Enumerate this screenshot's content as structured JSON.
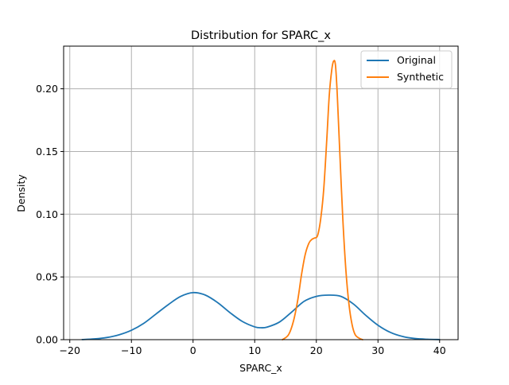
{
  "chart_data": {
    "type": "line",
    "title": "Distribution for SPARC_x",
    "xlabel": "SPARC_x",
    "ylabel": "Density",
    "xlim": [
      -21,
      43
    ],
    "ylim": [
      0,
      0.234
    ],
    "xticks": [
      -20,
      -10,
      0,
      10,
      20,
      30,
      40
    ],
    "xtick_labels": [
      "−20",
      "−10",
      "0",
      "10",
      "20",
      "30",
      "40"
    ],
    "yticks": [
      0,
      0.05,
      0.1,
      0.15,
      0.2
    ],
    "ytick_labels": [
      "0.00",
      "0.05",
      "0.10",
      "0.15",
      "0.20"
    ],
    "grid": true,
    "legend_position": "top-right",
    "series": [
      {
        "name": "Original",
        "color": "#1f77b4",
        "x": [
          -18,
          -16,
          -14,
          -12,
          -10,
          -8,
          -6,
          -4,
          -2,
          0,
          2,
          4,
          6,
          8,
          10,
          11,
          12,
          14,
          16,
          18,
          20,
          22,
          24,
          26,
          28,
          30,
          32,
          34,
          36,
          38,
          40
        ],
        "y": [
          0.0001,
          0.0006,
          0.0017,
          0.0039,
          0.0075,
          0.013,
          0.0205,
          0.028,
          0.0345,
          0.0375,
          0.0355,
          0.0295,
          0.0215,
          0.0145,
          0.0102,
          0.0095,
          0.01,
          0.014,
          0.022,
          0.0305,
          0.0345,
          0.0355,
          0.0345,
          0.0285,
          0.0195,
          0.0115,
          0.0058,
          0.0025,
          0.0009,
          0.0003,
          0.0001
        ]
      },
      {
        "name": "Synthetic",
        "color": "#ff7f0e",
        "x": [
          14.5,
          15.5,
          16.3,
          17.0,
          17.6,
          18.2,
          18.8,
          19.3,
          19.7,
          20.2,
          20.7,
          21.2,
          21.7,
          22.1,
          22.5,
          22.8,
          23.1,
          23.4,
          23.8,
          24.3,
          24.8,
          25.3,
          25.8,
          26.3,
          27.0,
          27.5
        ],
        "y": [
          0.0,
          0.004,
          0.015,
          0.032,
          0.052,
          0.068,
          0.077,
          0.08,
          0.081,
          0.083,
          0.096,
          0.12,
          0.16,
          0.195,
          0.215,
          0.222,
          0.219,
          0.195,
          0.15,
          0.096,
          0.055,
          0.028,
          0.012,
          0.004,
          0.001,
          0.0
        ]
      }
    ]
  }
}
